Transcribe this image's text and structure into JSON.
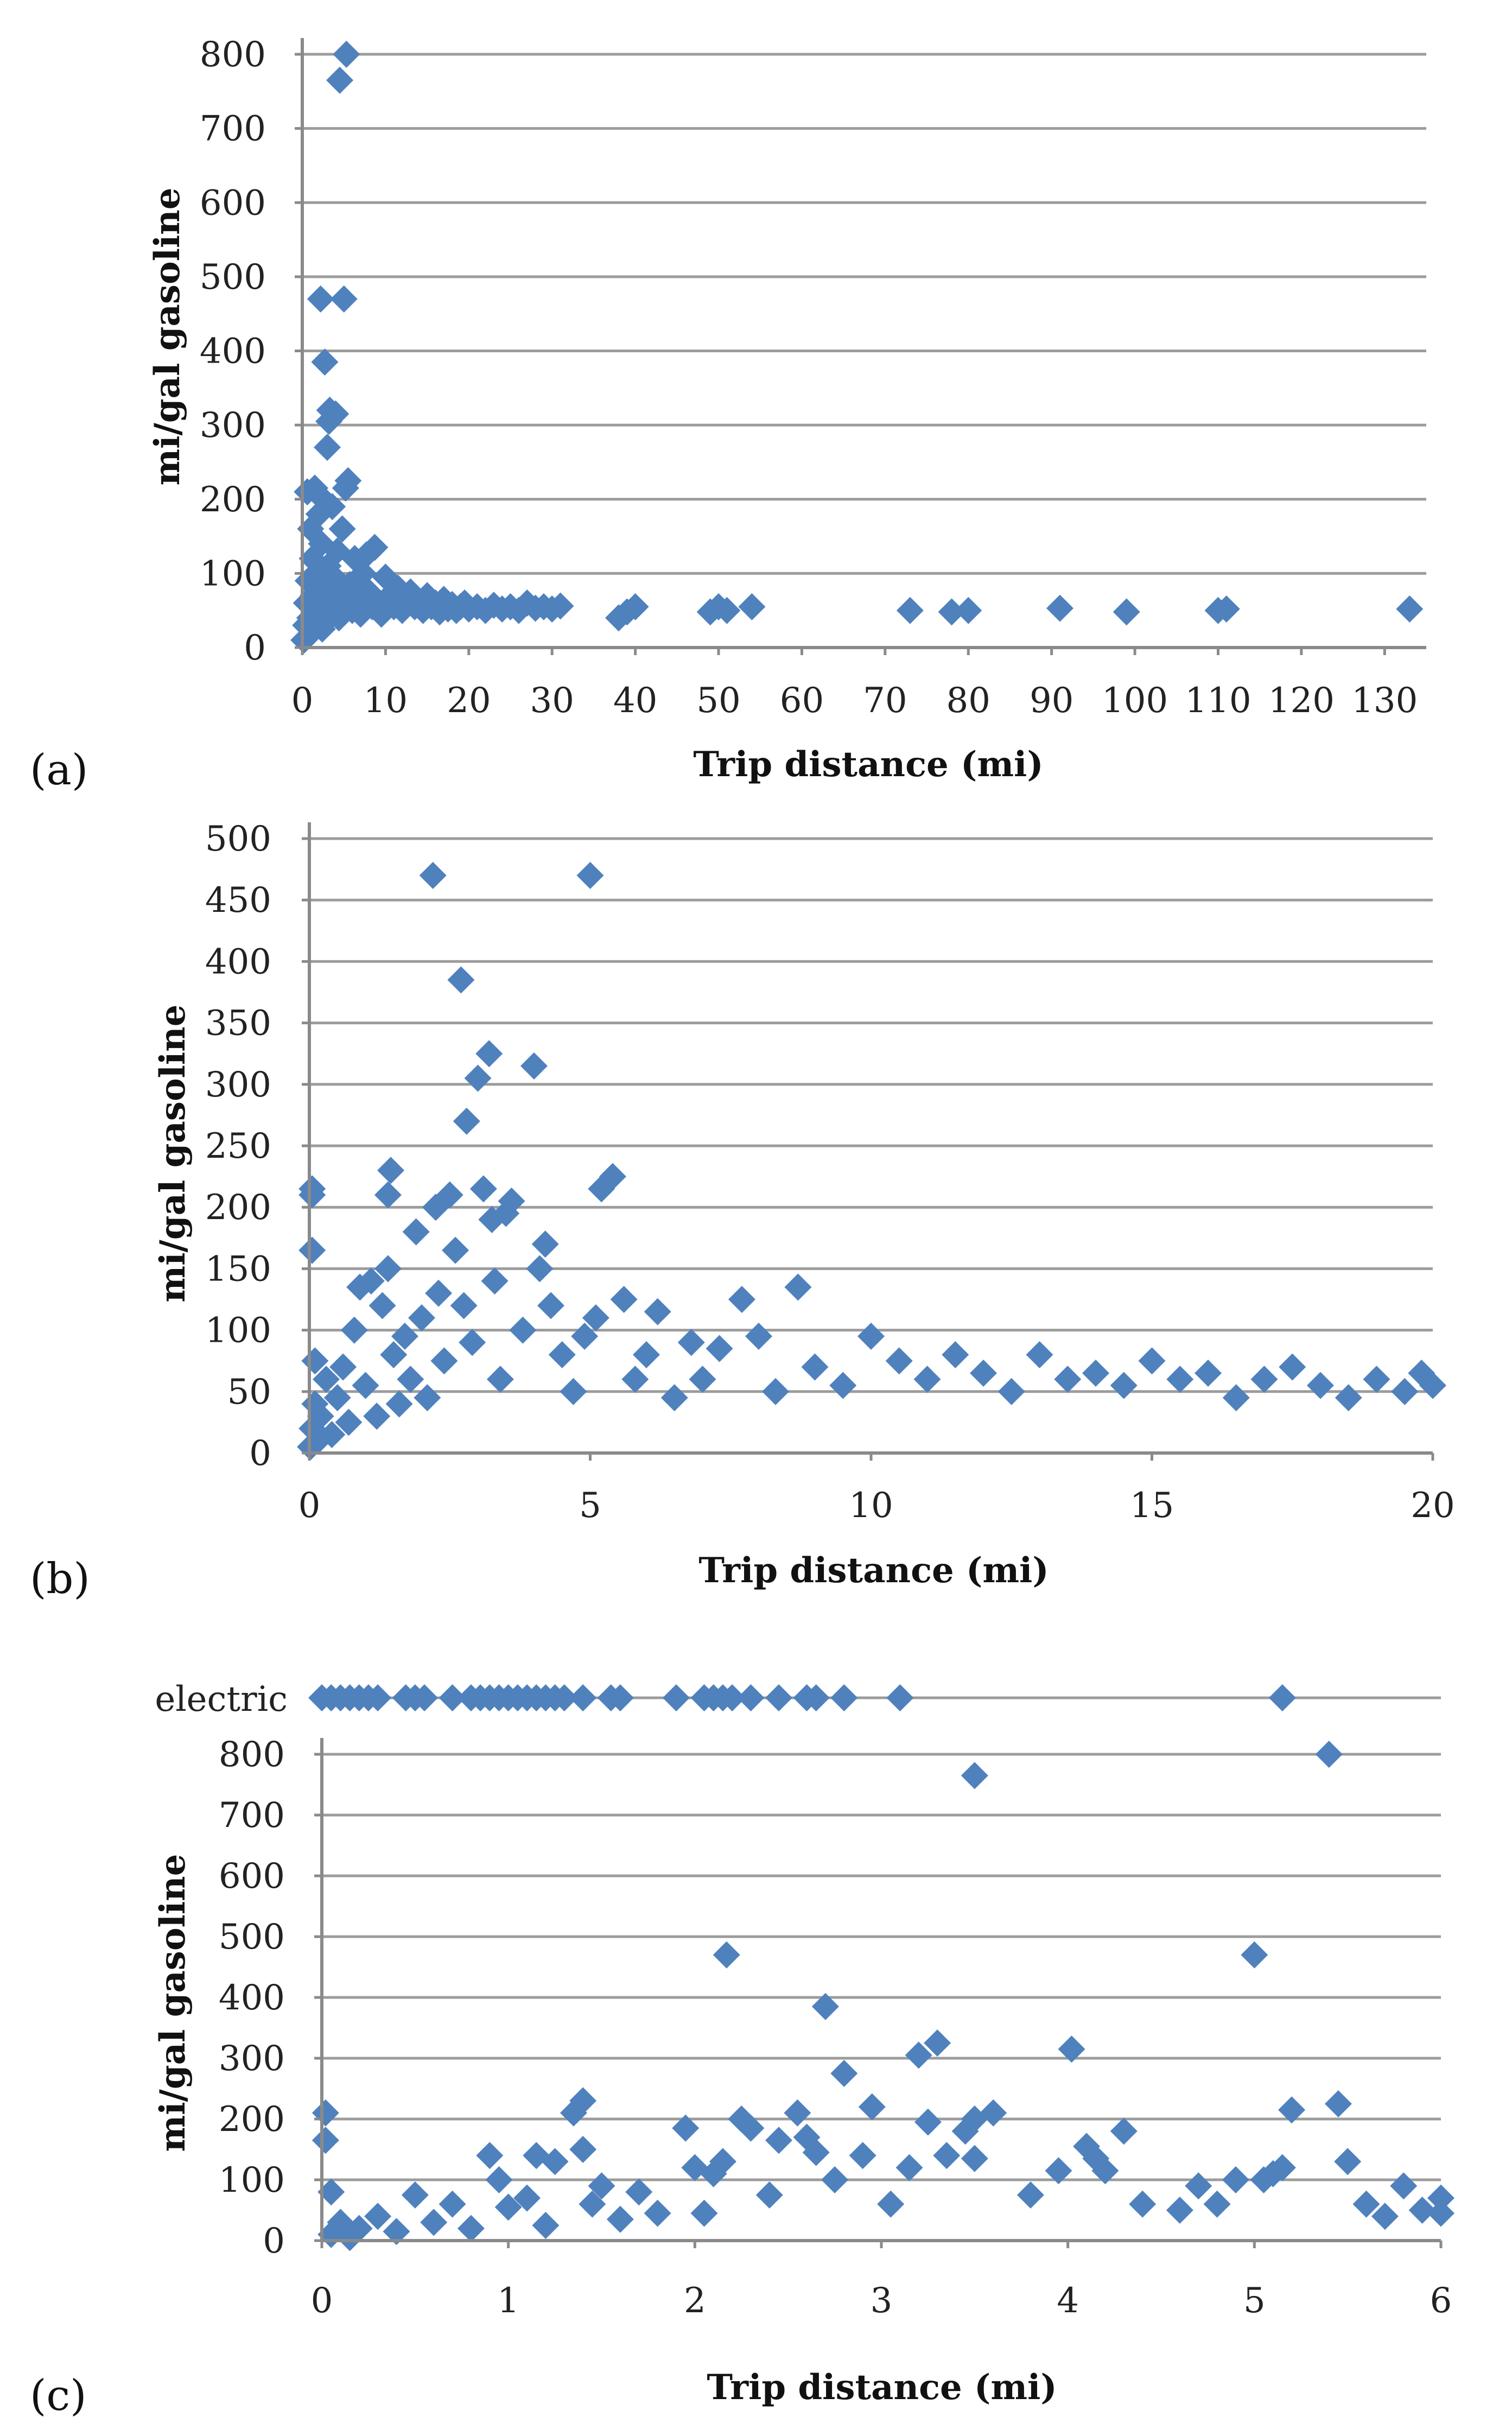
{
  "chart_data": [
    {
      "id": "a",
      "panel_label": "(a)",
      "type": "scatter",
      "xlabel": "Trip distance (mi)",
      "ylabel": "mi/gal gasoline",
      "xlim": [
        0,
        135
      ],
      "ylim": [
        0,
        800
      ],
      "xticks": [
        0,
        10,
        20,
        30,
        40,
        50,
        60,
        70,
        80,
        90,
        100,
        110,
        120,
        130
      ],
      "yticks": [
        0,
        100,
        200,
        300,
        400,
        500,
        600,
        700,
        800
      ],
      "grid": "horizontal",
      "marker": "diamond",
      "color": "#4f81bd",
      "points": [
        [
          0.2,
          10
        ],
        [
          0.4,
          30
        ],
        [
          0.5,
          60
        ],
        [
          0.6,
          210
        ],
        [
          0.7,
          90
        ],
        [
          0.9,
          40
        ],
        [
          1,
          160
        ],
        [
          1.1,
          20
        ],
        [
          1.2,
          120
        ],
        [
          1.3,
          70
        ],
        [
          1.5,
          215
        ],
        [
          1.6,
          45
        ],
        [
          1.7,
          100
        ],
        [
          1.8,
          30
        ],
        [
          2,
          180
        ],
        [
          2.1,
          60
        ],
        [
          2.2,
          470
        ],
        [
          2.3,
          140
        ],
        [
          2.4,
          25
        ],
        [
          2.5,
          200
        ],
        [
          2.6,
          80
        ],
        [
          2.7,
          385
        ],
        [
          2.8,
          35
        ],
        [
          3,
          270
        ],
        [
          3.1,
          110
        ],
        [
          3.2,
          305
        ],
        [
          3.3,
          320
        ],
        [
          3.4,
          55
        ],
        [
          3.6,
          190
        ],
        [
          3.8,
          95
        ],
        [
          4,
          315
        ],
        [
          4.2,
          130
        ],
        [
          4.4,
          40
        ],
        [
          4.6,
          70
        ],
        [
          4.8,
          160
        ],
        [
          5,
          470
        ],
        [
          5.2,
          215
        ],
        [
          5.3,
          800
        ],
        [
          5.5,
          225
        ],
        [
          5.7,
          85
        ],
        [
          6,
          50
        ],
        [
          6.3,
          120
        ],
        [
          6.6,
          65
        ],
        [
          7,
          45
        ],
        [
          7.3,
          100
        ],
        [
          7.7,
          125
        ],
        [
          8,
          75
        ],
        [
          8.4,
          55
        ],
        [
          8.7,
          135
        ],
        [
          9,
          60
        ],
        [
          9.5,
          45
        ],
        [
          10,
          95
        ],
        [
          10.5,
          70
        ],
        [
          11,
          55
        ],
        [
          11.5,
          80
        ],
        [
          12,
          50
        ],
        [
          12.5,
          65
        ],
        [
          13,
          75
        ],
        [
          13.5,
          55
        ],
        [
          14,
          60
        ],
        [
          14.5,
          50
        ],
        [
          15,
          70
        ],
        [
          15.5,
          55
        ],
        [
          16,
          60
        ],
        [
          16.5,
          48
        ],
        [
          17,
          65
        ],
        [
          17.5,
          52
        ],
        [
          18,
          58
        ],
        [
          18.5,
          50
        ],
        [
          19,
          55
        ],
        [
          19.5,
          60
        ],
        [
          20,
          52
        ],
        [
          21,
          55
        ],
        [
          22,
          50
        ],
        [
          23,
          57
        ],
        [
          24,
          52
        ],
        [
          25,
          55
        ],
        [
          26,
          50
        ],
        [
          27,
          60
        ],
        [
          28,
          53
        ],
        [
          29,
          55
        ],
        [
          30,
          52
        ],
        [
          31,
          56
        ],
        [
          38,
          40
        ],
        [
          39,
          48
        ],
        [
          40,
          55
        ],
        [
          49,
          48
        ],
        [
          50,
          55
        ],
        [
          51,
          50
        ],
        [
          54,
          55
        ],
        [
          73,
          50
        ],
        [
          78,
          48
        ],
        [
          80,
          50
        ],
        [
          91,
          53
        ],
        [
          99,
          48
        ],
        [
          110,
          50
        ],
        [
          111,
          52
        ],
        [
          133,
          52
        ],
        [
          4.5,
          765
        ]
      ]
    },
    {
      "id": "b",
      "panel_label": "(b)",
      "type": "scatter",
      "xlabel": "Trip distance (mi)",
      "ylabel": "mi/gal gasoline",
      "xlim": [
        0,
        20
      ],
      "ylim": [
        0,
        500
      ],
      "xticks": [
        0,
        5,
        10,
        15,
        20
      ],
      "yticks": [
        0,
        50,
        100,
        150,
        200,
        250,
        300,
        350,
        400,
        450,
        500
      ],
      "grid": "horizontal",
      "marker": "diamond",
      "color": "#4f81bd",
      "points": [
        [
          0.02,
          5
        ],
        [
          0.05,
          20
        ],
        [
          0.05,
          210
        ],
        [
          0.05,
          215
        ],
        [
          0.05,
          165
        ],
        [
          0.1,
          40
        ],
        [
          0.1,
          75
        ],
        [
          0.15,
          10
        ],
        [
          0.2,
          30
        ],
        [
          0.3,
          60
        ],
        [
          0.4,
          15
        ],
        [
          0.5,
          45
        ],
        [
          0.6,
          70
        ],
        [
          0.7,
          25
        ],
        [
          0.8,
          100
        ],
        [
          0.9,
          135
        ],
        [
          1,
          55
        ],
        [
          1.1,
          140
        ],
        [
          1.2,
          30
        ],
        [
          1.3,
          120
        ],
        [
          1.4,
          150
        ],
        [
          1.4,
          210
        ],
        [
          1.45,
          230
        ],
        [
          1.5,
          80
        ],
        [
          1.6,
          40
        ],
        [
          1.7,
          95
        ],
        [
          1.8,
          60
        ],
        [
          1.9,
          180
        ],
        [
          2,
          110
        ],
        [
          2.1,
          45
        ],
        [
          2.2,
          470
        ],
        [
          2.25,
          200
        ],
        [
          2.3,
          130
        ],
        [
          2.4,
          75
        ],
        [
          2.5,
          210
        ],
        [
          2.6,
          165
        ],
        [
          2.7,
          385
        ],
        [
          2.75,
          120
        ],
        [
          2.8,
          270
        ],
        [
          2.9,
          90
        ],
        [
          3,
          305
        ],
        [
          3.1,
          215
        ],
        [
          3.2,
          325
        ],
        [
          3.25,
          190
        ],
        [
          3.3,
          140
        ],
        [
          3.4,
          60
        ],
        [
          3.5,
          195
        ],
        [
          3.6,
          205
        ],
        [
          3.8,
          100
        ],
        [
          4,
          315
        ],
        [
          4.1,
          150
        ],
        [
          4.2,
          170
        ],
        [
          4.3,
          120
        ],
        [
          4.5,
          80
        ],
        [
          4.7,
          50
        ],
        [
          4.9,
          95
        ],
        [
          5,
          470
        ],
        [
          5.1,
          110
        ],
        [
          5.2,
          215
        ],
        [
          5.4,
          225
        ],
        [
          5.6,
          125
        ],
        [
          5.8,
          60
        ],
        [
          6,
          80
        ],
        [
          6.2,
          115
        ],
        [
          6.5,
          45
        ],
        [
          6.8,
          90
        ],
        [
          7,
          60
        ],
        [
          7.3,
          85
        ],
        [
          7.7,
          125
        ],
        [
          8,
          95
        ],
        [
          8.3,
          50
        ],
        [
          8.7,
          135
        ],
        [
          9,
          70
        ],
        [
          9.5,
          55
        ],
        [
          10,
          95
        ],
        [
          10.5,
          75
        ],
        [
          11,
          60
        ],
        [
          11.5,
          80
        ],
        [
          12,
          65
        ],
        [
          12.5,
          50
        ],
        [
          13,
          80
        ],
        [
          13.5,
          60
        ],
        [
          14,
          65
        ],
        [
          14.5,
          55
        ],
        [
          15,
          75
        ],
        [
          15.5,
          60
        ],
        [
          16,
          65
        ],
        [
          16.5,
          45
        ],
        [
          17,
          60
        ],
        [
          17.5,
          70
        ],
        [
          18,
          55
        ],
        [
          18.5,
          45
        ],
        [
          19,
          60
        ],
        [
          19.5,
          50
        ],
        [
          19.8,
          65
        ],
        [
          20,
          55
        ]
      ]
    },
    {
      "id": "c",
      "panel_label": "(c)",
      "type": "scatter",
      "xlabel": "Trip distance (mi)",
      "ylabel": "mi/gal gasoline",
      "xlim": [
        0,
        6
      ],
      "ylim": [
        0,
        800
      ],
      "xticks": [
        0,
        1,
        2,
        3,
        4,
        5,
        6
      ],
      "yticks": [
        0,
        100,
        200,
        300,
        400,
        500,
        600,
        700,
        800
      ],
      "extra_row_label": "electric",
      "grid": "horizontal",
      "marker": "diamond",
      "color": "#4f81bd",
      "electric_x": [
        0,
        0.05,
        0.1,
        0.15,
        0.2,
        0.25,
        0.3,
        0.45,
        0.5,
        0.55,
        0.7,
        0.8,
        0.85,
        0.9,
        0.95,
        1.0,
        1.05,
        1.1,
        1.15,
        1.2,
        1.25,
        1.3,
        1.4,
        1.55,
        1.6,
        1.9,
        2.05,
        2.1,
        2.15,
        2.2,
        2.3,
        2.45,
        2.6,
        2.65,
        2.8,
        3.1,
        5.15
      ],
      "points": [
        [
          0.02,
          210
        ],
        [
          0.02,
          165
        ],
        [
          0.05,
          80
        ],
        [
          0.05,
          10
        ],
        [
          0.1,
          30
        ],
        [
          0.15,
          5
        ],
        [
          0.2,
          20
        ],
        [
          0.3,
          40
        ],
        [
          0.4,
          15
        ],
        [
          0.5,
          75
        ],
        [
          0.6,
          30
        ],
        [
          0.7,
          60
        ],
        [
          0.8,
          20
        ],
        [
          0.9,
          140
        ],
        [
          0.95,
          100
        ],
        [
          1,
          55
        ],
        [
          1.1,
          70
        ],
        [
          1.15,
          140
        ],
        [
          1.2,
          25
        ],
        [
          1.25,
          130
        ],
        [
          1.35,
          210
        ],
        [
          1.4,
          230
        ],
        [
          1.4,
          150
        ],
        [
          1.45,
          60
        ],
        [
          1.5,
          90
        ],
        [
          1.6,
          35
        ],
        [
          1.7,
          80
        ],
        [
          1.8,
          45
        ],
        [
          1.95,
          185
        ],
        [
          2,
          120
        ],
        [
          2.05,
          45
        ],
        [
          2.1,
          110
        ],
        [
          2.15,
          130
        ],
        [
          2.17,
          470
        ],
        [
          2.25,
          200
        ],
        [
          2.3,
          185
        ],
        [
          2.4,
          75
        ],
        [
          2.45,
          165
        ],
        [
          2.55,
          210
        ],
        [
          2.6,
          170
        ],
        [
          2.65,
          145
        ],
        [
          2.7,
          385
        ],
        [
          2.75,
          100
        ],
        [
          2.8,
          275
        ],
        [
          2.9,
          140
        ],
        [
          2.95,
          220
        ],
        [
          3.05,
          60
        ],
        [
          3.15,
          120
        ],
        [
          3.2,
          305
        ],
        [
          3.25,
          195
        ],
        [
          3.3,
          325
        ],
        [
          3.35,
          140
        ],
        [
          3.45,
          180
        ],
        [
          3.5,
          765
        ],
        [
          3.5,
          200
        ],
        [
          3.5,
          135
        ],
        [
          3.6,
          210
        ],
        [
          3.8,
          75
        ],
        [
          3.95,
          115
        ],
        [
          4.02,
          315
        ],
        [
          4.1,
          155
        ],
        [
          4.15,
          135
        ],
        [
          4.2,
          115
        ],
        [
          4.3,
          180
        ],
        [
          4.4,
          60
        ],
        [
          4.6,
          50
        ],
        [
          4.7,
          90
        ],
        [
          4.8,
          60
        ],
        [
          4.9,
          100
        ],
        [
          5,
          470
        ],
        [
          5.05,
          100
        ],
        [
          5.1,
          110
        ],
        [
          5.15,
          120
        ],
        [
          5.2,
          215
        ],
        [
          5.4,
          800
        ],
        [
          5.45,
          225
        ],
        [
          5.5,
          130
        ],
        [
          5.6,
          60
        ],
        [
          5.7,
          40
        ],
        [
          5.8,
          90
        ],
        [
          5.9,
          50
        ],
        [
          6,
          70
        ],
        [
          6,
          45
        ]
      ]
    }
  ]
}
